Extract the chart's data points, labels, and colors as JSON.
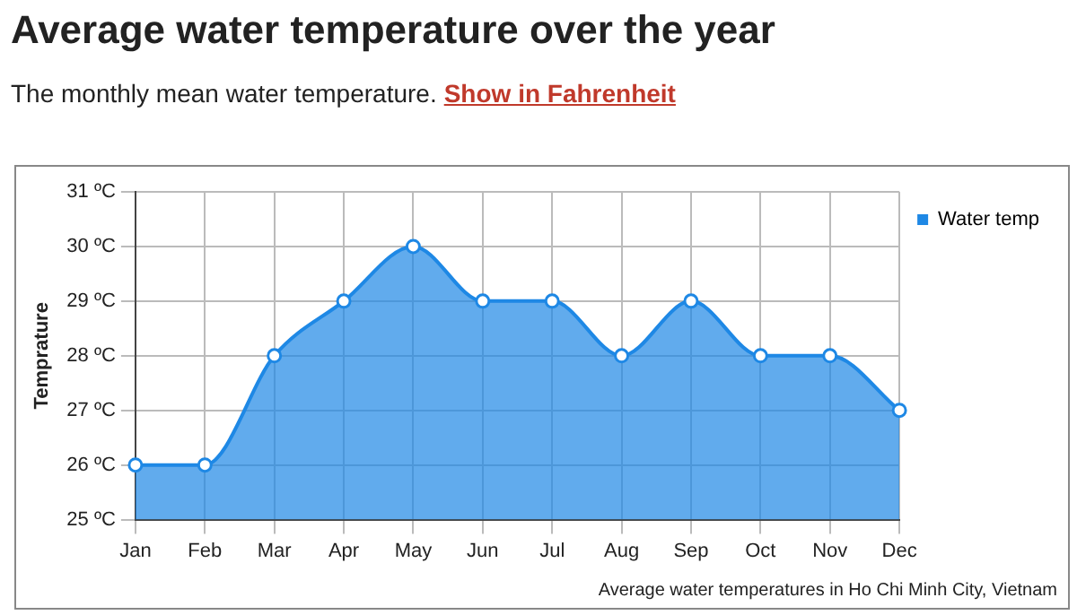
{
  "chart_data": {
    "type": "area",
    "title": "Average water temperature over the year",
    "subtitle": "The monthly mean water temperature.",
    "ylabel": "Temprature",
    "categories": [
      "Jan",
      "Feb",
      "Mar",
      "Apr",
      "May",
      "Jun",
      "Jul",
      "Aug",
      "Sep",
      "Oct",
      "Nov",
      "Dec"
    ],
    "series": [
      {
        "name": "Water temp",
        "color": "#1e88e5",
        "values": [
          26,
          26,
          28,
          29,
          30,
          29,
          29,
          28,
          29,
          28,
          28,
          27
        ]
      }
    ],
    "ylim": [
      25,
      31
    ],
    "yticks": [
      {
        "value": 25,
        "label": "25 ºC"
      },
      {
        "value": 26,
        "label": "26 ºC"
      },
      {
        "value": 27,
        "label": "27 ºC"
      },
      {
        "value": 28,
        "label": "28 ºC"
      },
      {
        "value": 29,
        "label": "29 ºC"
      },
      {
        "value": 30,
        "label": "30 ºC"
      },
      {
        "value": 31,
        "label": "31 ºC"
      }
    ],
    "grid": true,
    "legend": "top right",
    "marker": "circle",
    "annotations": [
      "Show in Fahrenheit",
      "Average water temperatures in Ho Chi Minh City, Vietnam"
    ]
  }
}
